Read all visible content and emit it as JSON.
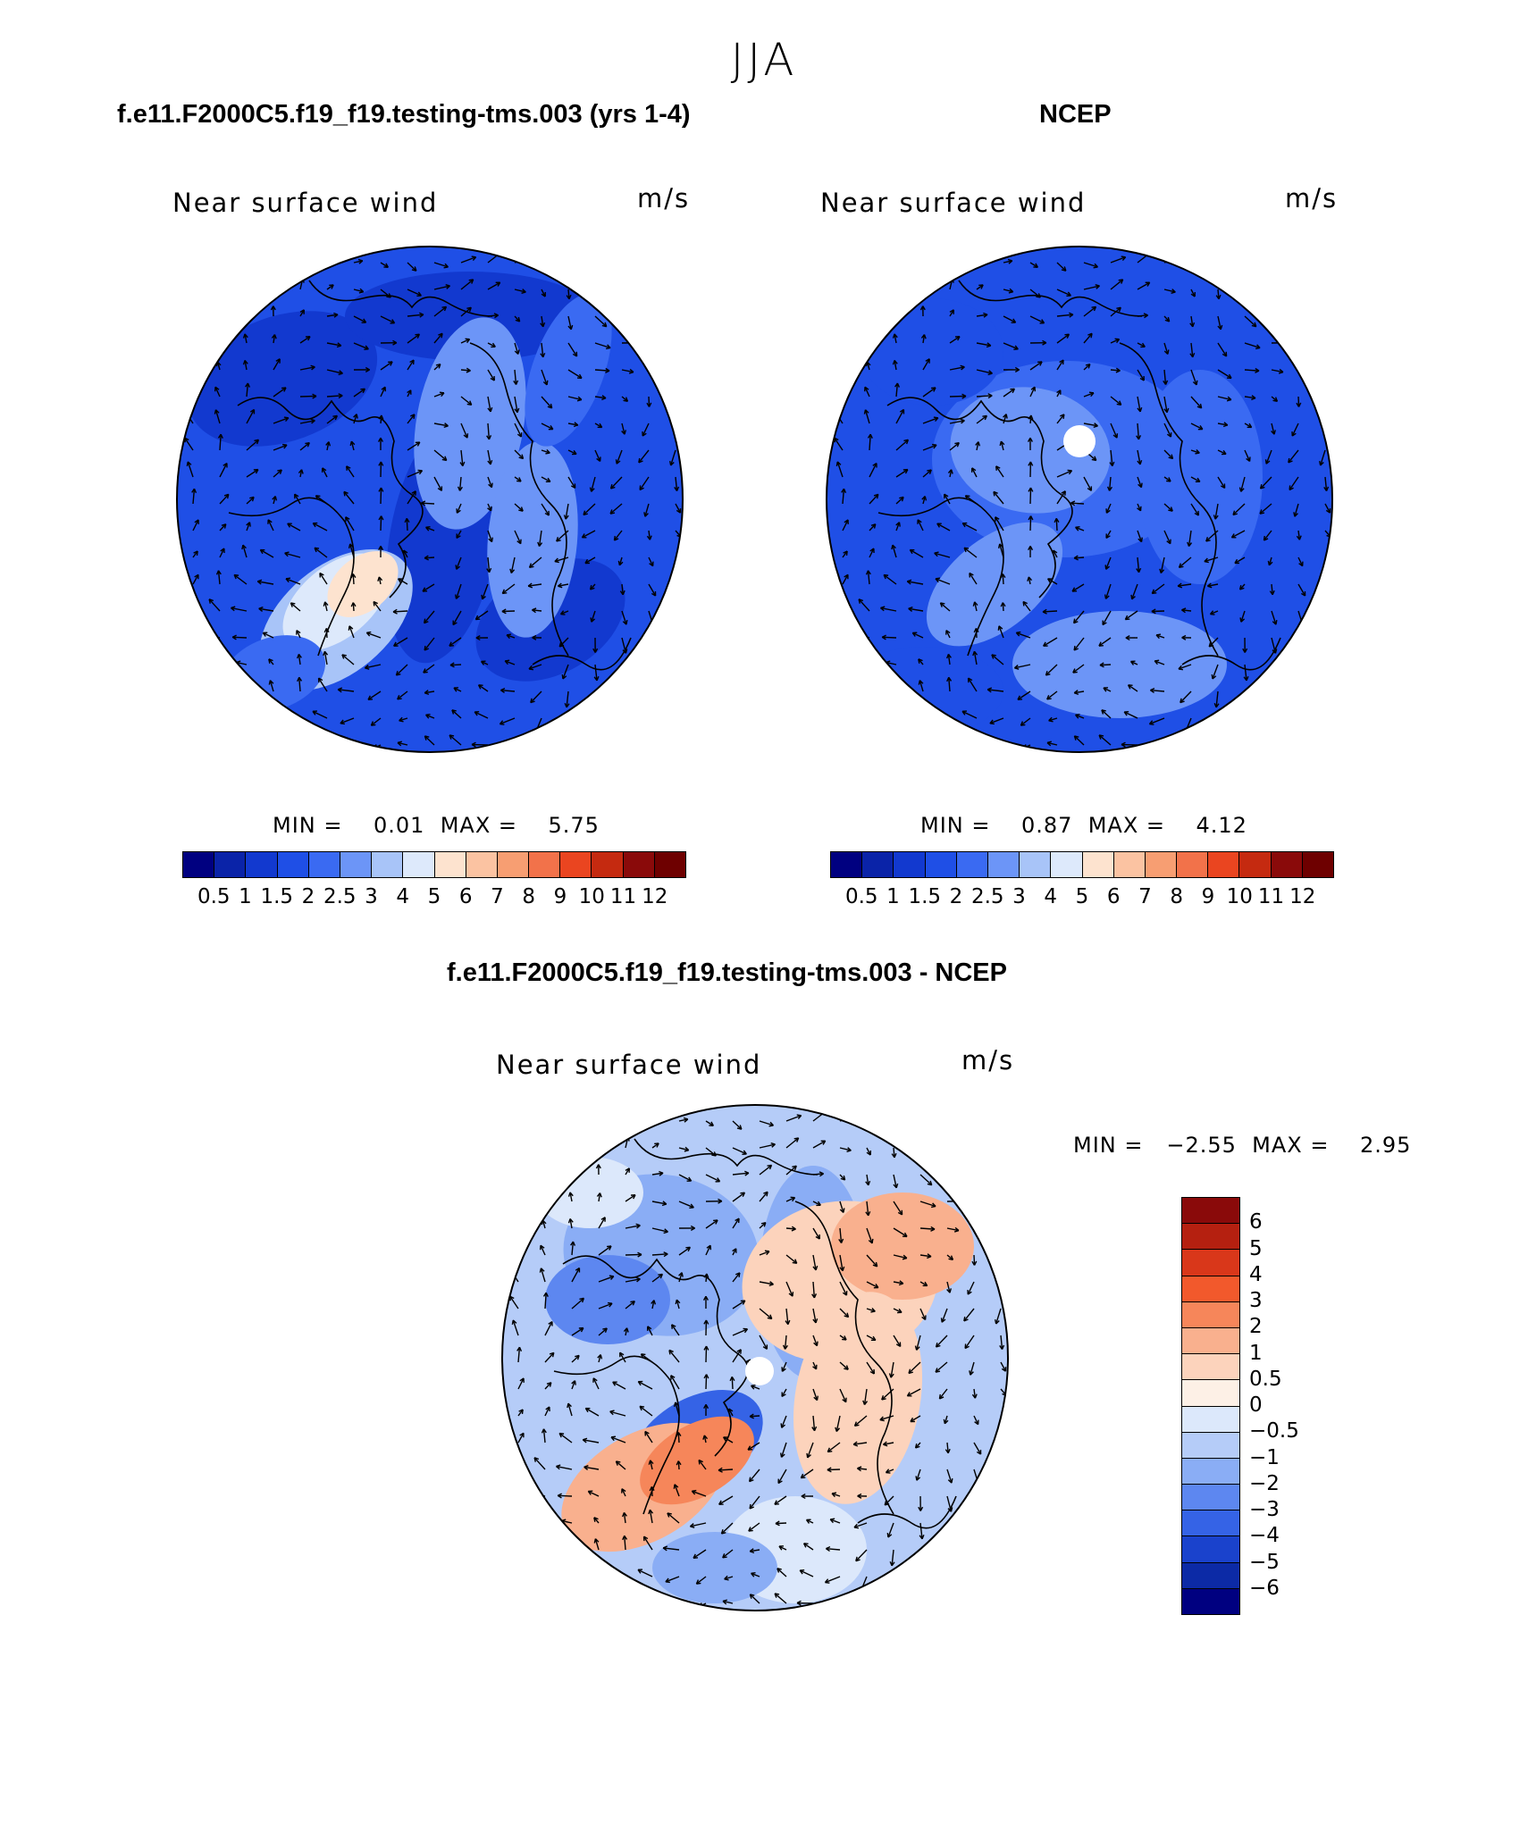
{
  "header": {
    "title": "JJA",
    "left_case": "f.e11.F2000C5.f19_f19.testing-tms.003 (yrs 1-4)",
    "right_case": "NCEP",
    "diff_case": "f.e11.F2000C5.f19_f19.testing-tms.003 - NCEP"
  },
  "panels": {
    "model": {
      "label": "Near surface wind",
      "units": "m/s",
      "stats": "MIN =    0.01  MAX =    5.75"
    },
    "obs": {
      "label": "Near surface wind",
      "units": "m/s",
      "stats": "MIN =    0.87  MAX =    4.12"
    },
    "diff": {
      "label": "Near surface wind",
      "units": "m/s",
      "stats": "MIN =   −2.55  MAX =    2.95"
    }
  },
  "chart_data": [
    {
      "type": "heatmap",
      "title": "Near surface wind (model)",
      "units": "m/s",
      "projection": "north-polar-stereographic",
      "overlay": "wind vectors",
      "min": 0.01,
      "max": 5.75,
      "colorbar": {
        "levels": [
          "0.5",
          "1",
          "1.5",
          "2",
          "2.5",
          "3",
          "4",
          "5",
          "6",
          "7",
          "8",
          "9",
          "10",
          "11",
          "12"
        ],
        "colors": [
          "#000080",
          "#0a23a8",
          "#1239cf",
          "#1f4fe6",
          "#3a6af2",
          "#6c95f7",
          "#a8c4f8",
          "#dde9fb",
          "#fde3cf",
          "#fbc3a2",
          "#f79e72",
          "#f2724a",
          "#ea4520",
          "#c52a10",
          "#8a0a0a",
          "#6e0000"
        ]
      }
    },
    {
      "type": "heatmap",
      "title": "Near surface wind (NCEP)",
      "units": "m/s",
      "projection": "north-polar-stereographic",
      "overlay": "wind vectors",
      "min": 0.87,
      "max": 4.12,
      "colorbar": {
        "levels": [
          "0.5",
          "1",
          "1.5",
          "2",
          "2.5",
          "3",
          "4",
          "5",
          "6",
          "7",
          "8",
          "9",
          "10",
          "11",
          "12"
        ],
        "colors": [
          "#000080",
          "#0a23a8",
          "#1239cf",
          "#1f4fe6",
          "#3a6af2",
          "#6c95f7",
          "#a8c4f8",
          "#dde9fb",
          "#fde3cf",
          "#fbc3a2",
          "#f79e72",
          "#f2724a",
          "#ea4520",
          "#c52a10",
          "#8a0a0a",
          "#6e0000"
        ]
      }
    },
    {
      "type": "heatmap",
      "title": "Near surface wind (model - NCEP)",
      "units": "m/s",
      "projection": "north-polar-stereographic",
      "overlay": "wind vectors",
      "min": -2.55,
      "max": 2.95,
      "colorbar": {
        "levels": [
          "6",
          "5",
          "4",
          "3",
          "2",
          "1",
          "0.5",
          "0",
          "−0.5",
          "−1",
          "−2",
          "−3",
          "−4",
          "−5",
          "−6"
        ],
        "colors": [
          "#8a0a0a",
          "#b52010",
          "#d9371a",
          "#f2592c",
          "#f6865a",
          "#f9b08e",
          "#fcd3bc",
          "#fdf0e6",
          "#dce8fb",
          "#b5ccf8",
          "#8aadf5",
          "#5d87f0",
          "#3563e6",
          "#1a42cc",
          "#0c2aa6",
          "#000080"
        ]
      }
    }
  ]
}
